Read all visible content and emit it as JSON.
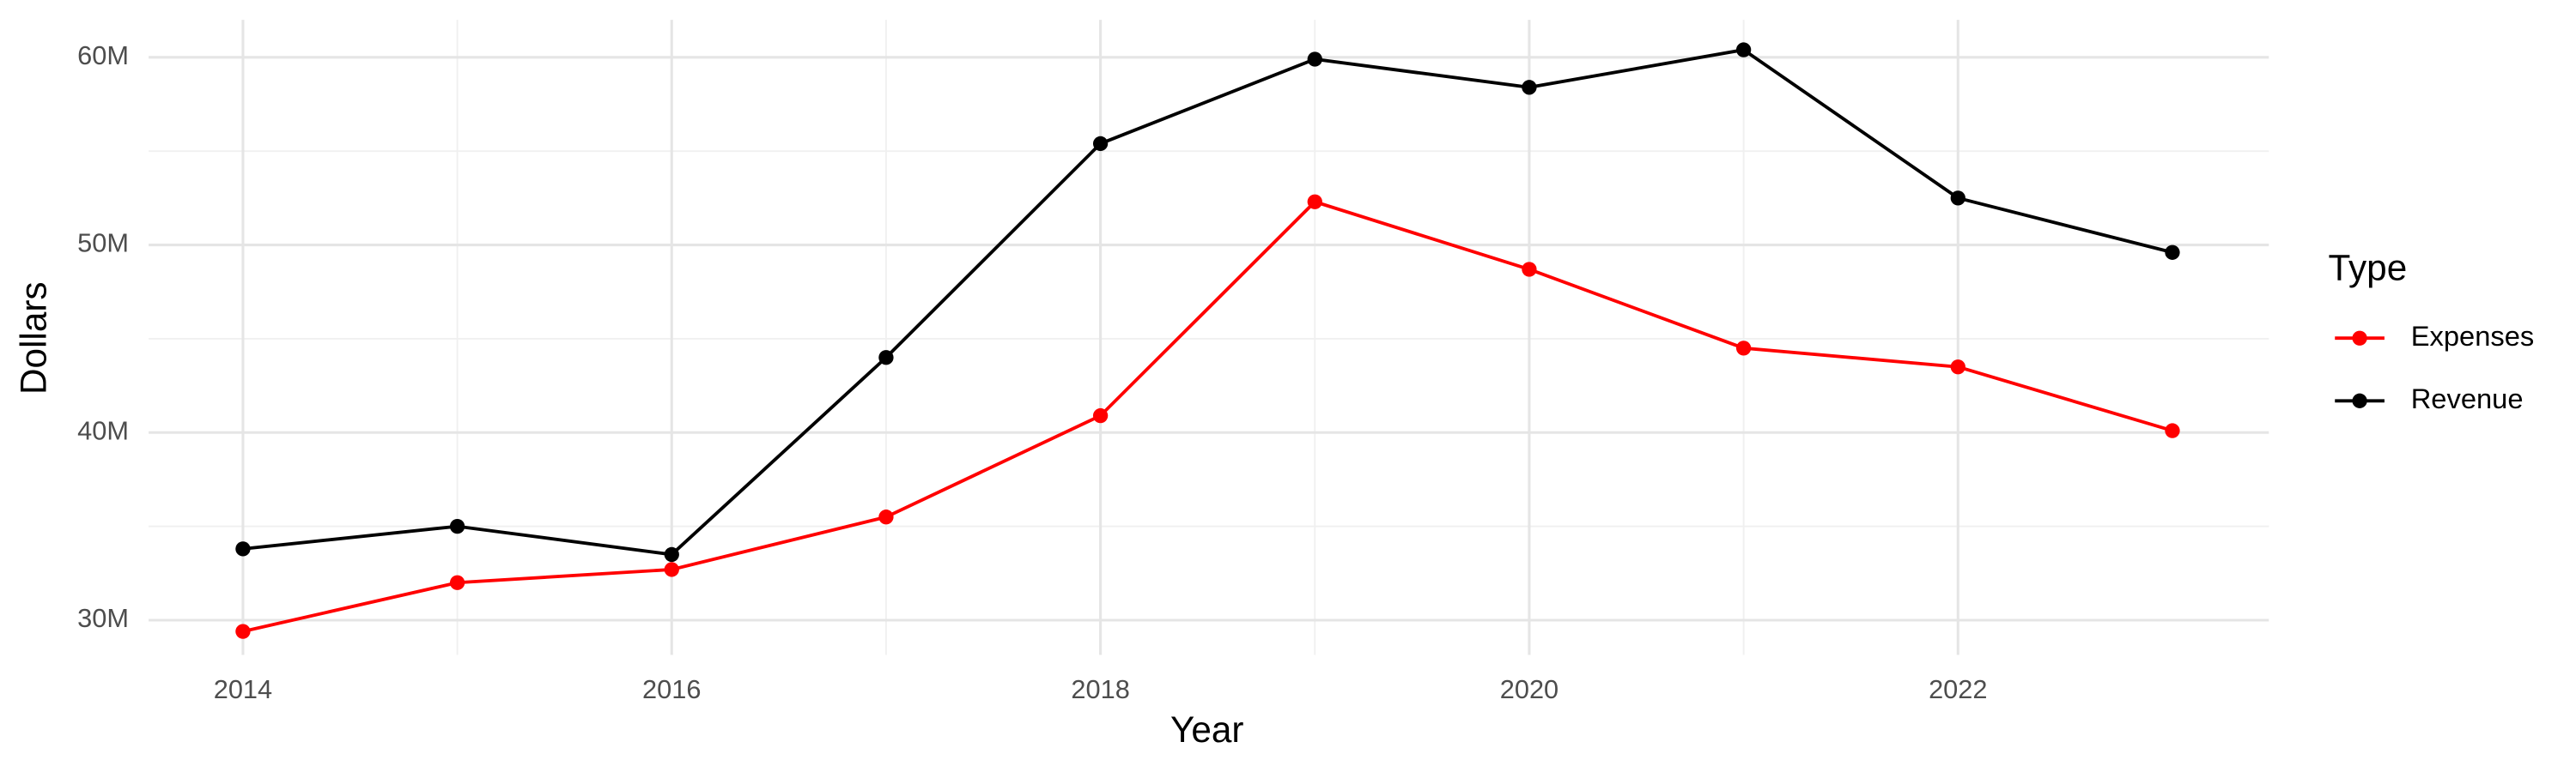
{
  "chart_data": {
    "type": "line",
    "x_label": "Year",
    "y_label": "Dollars",
    "x": [
      2014,
      2015,
      2016,
      2017,
      2018,
      2019,
      2020,
      2021,
      2022,
      2023
    ],
    "series": [
      {
        "name": "Expenses",
        "color": "#ff0000",
        "values": [
          29400000,
          32000000,
          32700000,
          35500000,
          40900000,
          52300000,
          48700000,
          44500000,
          43500000,
          40100000
        ]
      },
      {
        "name": "Revenue",
        "color": "#000000",
        "values": [
          33800000,
          35000000,
          33500000,
          44000000,
          55400000,
          59900000,
          58400000,
          60400000,
          52500000,
          49600000
        ]
      }
    ],
    "legend_title": "Type",
    "xlim": [
      2013.56,
      2023.45
    ],
    "xticks": [
      2014,
      2016,
      2018,
      2020,
      2022
    ],
    "ylim": [
      28150000,
      62000000
    ],
    "yticks": [
      {
        "value": 30000000,
        "label": "30M"
      },
      {
        "value": 40000000,
        "label": "40M"
      },
      {
        "value": 50000000,
        "label": "50M"
      },
      {
        "value": 60000000,
        "label": "60M"
      }
    ],
    "grid": true,
    "legend_position": "right"
  }
}
